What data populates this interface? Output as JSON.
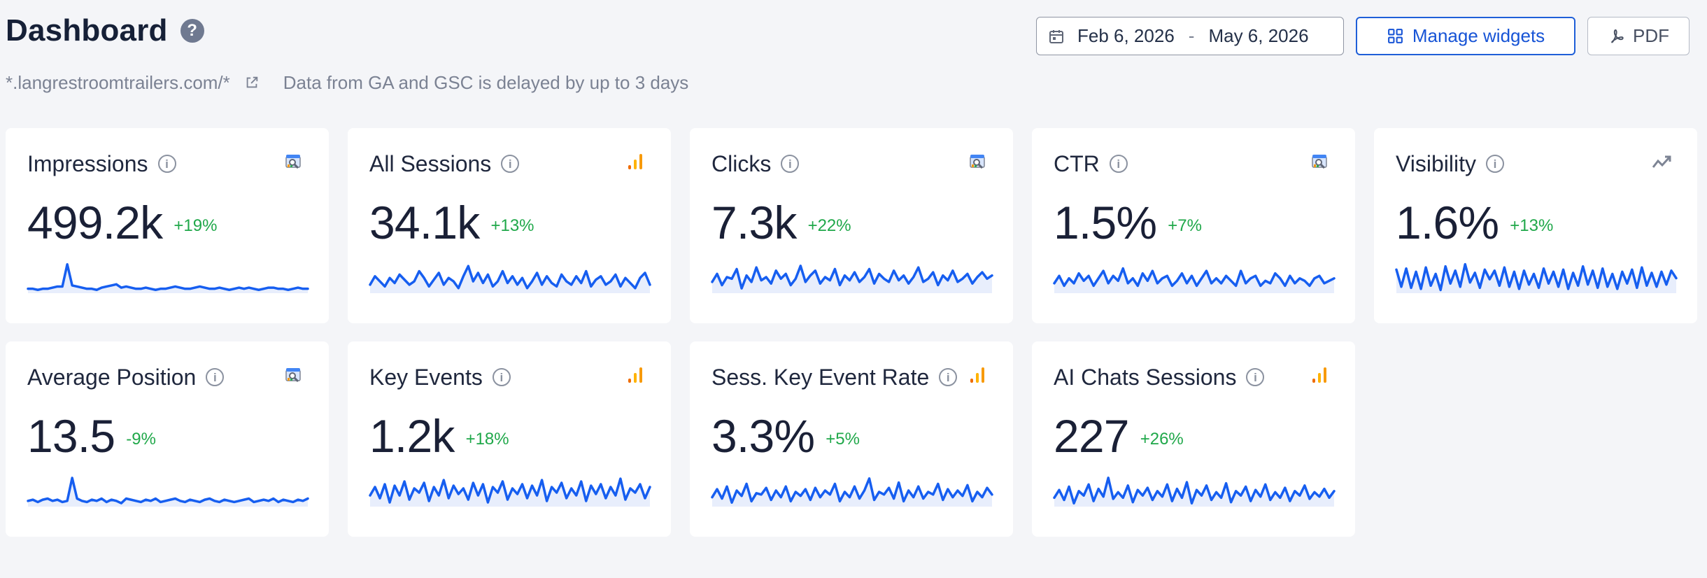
{
  "header": {
    "title": "Dashboard",
    "help_icon": "help-icon",
    "site": "*.langrestroomtrailers.com/*",
    "external_icon": "external-link-icon",
    "delay_note": "Data from GA and GSC is delayed by up to 3 days"
  },
  "toolbar": {
    "calendar_icon": "calendar-icon",
    "date_start": "Feb 6, 2026",
    "date_separator": "-",
    "date_end": "May 6, 2026",
    "manage_icon": "widgets-icon",
    "manage_label": "Manage widgets",
    "pdf_icon": "pdf-icon",
    "pdf_label": "PDF"
  },
  "colors": {
    "background": "#f4f5f8",
    "card": "#ffffff",
    "text": "#1a2036",
    "accent": "#1754d6",
    "positive": "#20a84a",
    "sparkline": "#165ef0",
    "sparkline_fill": "#e8eefc",
    "analytics_orange": "#f79a0a"
  },
  "cards": [
    {
      "title": "Impressions",
      "info_icon": "info-icon",
      "source_icon": "search-console-icon",
      "value": "499.2k",
      "change": "+19%",
      "trend": [
        50,
        50,
        49,
        50,
        50,
        51,
        52,
        52,
        72,
        53,
        52,
        51,
        50,
        50,
        49,
        51,
        52,
        53,
        54,
        51,
        52,
        51,
        50,
        50,
        51,
        50,
        49,
        50,
        50,
        51,
        52,
        51,
        50,
        50,
        51,
        52,
        51,
        50,
        50,
        51,
        50,
        49,
        50,
        51,
        50,
        51,
        50,
        49,
        50,
        51,
        51,
        50,
        50,
        49,
        50,
        51,
        50,
        50
      ]
    },
    {
      "title": "All Sessions",
      "info_icon": "info-icon",
      "source_icon": "analytics-icon",
      "value": "34.1k",
      "change": "+13%",
      "trend": [
        50,
        55,
        52,
        49,
        54,
        51,
        56,
        53,
        50,
        52,
        58,
        54,
        49,
        53,
        57,
        50,
        54,
        52,
        48,
        55,
        61,
        52,
        57,
        51,
        56,
        49,
        52,
        58,
        51,
        55,
        50,
        54,
        48,
        52,
        57,
        50,
        55,
        51,
        49,
        56,
        52,
        50,
        55,
        51,
        58,
        49,
        53,
        55,
        50,
        52,
        56,
        49,
        54,
        51,
        48,
        54,
        57,
        50
      ]
    },
    {
      "title": "Clicks",
      "info_icon": "info-icon",
      "source_icon": "search-console-icon",
      "value": "7.3k",
      "change": "+22%",
      "trend": [
        50,
        55,
        48,
        53,
        52,
        58,
        46,
        54,
        50,
        59,
        51,
        53,
        49,
        57,
        52,
        55,
        48,
        52,
        60,
        50,
        54,
        57,
        49,
        53,
        51,
        58,
        48,
        54,
        51,
        56,
        50,
        53,
        58,
        49,
        55,
        52,
        50,
        57,
        51,
        54,
        49,
        53,
        59,
        50,
        52,
        56,
        48,
        54,
        51,
        57,
        50,
        52,
        55,
        49,
        53,
        56,
        52,
        54
      ]
    },
    {
      "title": "CTR",
      "info_icon": "info-icon",
      "source_icon": "search-console-icon",
      "value": "1.5%",
      "change": "+7%",
      "trend": [
        50,
        53,
        49,
        52,
        50,
        54,
        51,
        53,
        49,
        52,
        55,
        50,
        53,
        51,
        56,
        50,
        52,
        49,
        54,
        51,
        55,
        50,
        52,
        53,
        49,
        51,
        54,
        50,
        53,
        49,
        52,
        55,
        50,
        52,
        50,
        53,
        51,
        49,
        55,
        50,
        52,
        53,
        49,
        51,
        50,
        54,
        52,
        49,
        53,
        50,
        52,
        51,
        49,
        52,
        53,
        50,
        51,
        52
      ]
    },
    {
      "title": "Visibility",
      "info_icon": "info-icon",
      "source_icon": "trend-icon",
      "value": "1.6%",
      "change": "+13%",
      "trend": [
        64,
        48,
        65,
        47,
        62,
        46,
        66,
        49,
        60,
        45,
        67,
        51,
        63,
        48,
        69,
        52,
        61,
        47,
        64,
        55,
        63,
        49,
        66,
        48,
        62,
        46,
        63,
        50,
        60,
        47,
        65,
        51,
        62,
        48,
        64,
        46,
        61,
        49,
        67,
        50,
        63,
        47,
        65,
        48,
        60,
        46,
        62,
        51,
        64,
        47,
        66,
        49,
        61,
        48,
        62,
        50,
        63,
        56
      ]
    },
    {
      "title": "Average Position",
      "info_icon": "info-icon",
      "source_icon": "search-console-icon",
      "value": "13.5",
      "change": "-9%",
      "trend": [
        50,
        51,
        49,
        51,
        52,
        50,
        51,
        49,
        50,
        70,
        52,
        50,
        49,
        51,
        50,
        52,
        49,
        51,
        50,
        48,
        52,
        51,
        50,
        49,
        51,
        50,
        52,
        49,
        50,
        51,
        52,
        50,
        49,
        51,
        50,
        49,
        51,
        52,
        50,
        49,
        51,
        50,
        49,
        50,
        51,
        52,
        49,
        50,
        51,
        50,
        52,
        49,
        51,
        50,
        49,
        51,
        50,
        52
      ]
    },
    {
      "title": "Key Events",
      "info_icon": "info-icon",
      "source_icon": "analytics-icon",
      "value": "1.2k",
      "change": "+18%",
      "trend": [
        50,
        56,
        48,
        58,
        45,
        57,
        50,
        60,
        47,
        55,
        52,
        59,
        46,
        56,
        50,
        61,
        48,
        57,
        51,
        55,
        47,
        59,
        50,
        58,
        45,
        56,
        52,
        60,
        47,
        55,
        51,
        58,
        48,
        57,
        50,
        61,
        46,
        56,
        52,
        59,
        48,
        55,
        50,
        60,
        46,
        57,
        51,
        58,
        48,
        56,
        50,
        62,
        47,
        55,
        52,
        58,
        48,
        56
      ]
    },
    {
      "title": "Sess. Key Event Rate",
      "info_icon": "info-icon",
      "source_icon": "analytics-icon",
      "value": "3.3%",
      "change": "+5%",
      "trend": [
        50,
        56,
        49,
        58,
        46,
        55,
        51,
        60,
        47,
        53,
        52,
        57,
        48,
        55,
        50,
        58,
        47,
        54,
        51,
        56,
        48,
        57,
        50,
        55,
        52,
        60,
        47,
        54,
        50,
        58,
        49,
        55,
        64,
        48,
        54,
        52,
        57,
        49,
        61,
        47,
        55,
        50,
        58,
        49,
        54,
        52,
        60,
        48,
        56,
        50,
        55,
        51,
        59,
        47,
        54,
        50,
        57,
        52
      ]
    },
    {
      "title": "AI Chats Sessions",
      "info_icon": "info-icon",
      "source_icon": "analytics-icon",
      "value": "227",
      "change": "+26%",
      "trend": [
        50,
        57,
        48,
        60,
        45,
        56,
        52,
        62,
        47,
        58,
        51,
        68,
        49,
        55,
        50,
        61,
        46,
        57,
        52,
        59,
        48,
        56,
        51,
        62,
        47,
        58,
        50,
        64,
        45,
        57,
        52,
        61,
        48,
        55,
        50,
        63,
        46,
        56,
        52,
        60,
        47,
        57,
        51,
        62,
        48,
        55,
        50,
        59,
        47,
        56,
        52,
        61,
        49,
        55,
        51,
        58,
        50,
        56
      ]
    }
  ]
}
